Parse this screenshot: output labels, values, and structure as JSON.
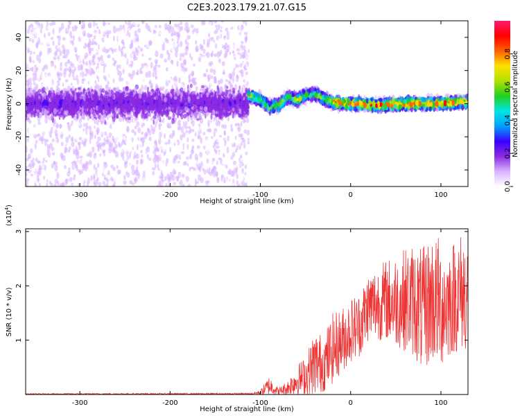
{
  "chart_data": [
    {
      "type": "heatmap",
      "title": "C2E3.2023.179.21.07.G15",
      "xlabel": "Height of straight line (km)",
      "ylabel": "Frequency (Hz)",
      "xlim": [
        -360,
        130
      ],
      "ylim": [
        -50,
        50
      ],
      "xticks": [
        -300,
        -200,
        -100,
        0,
        100
      ],
      "yticks": [
        -40,
        -20,
        0,
        20,
        40
      ],
      "colorbar": {
        "label": "Normalized spectral amplitude",
        "range": [
          0.0,
          1.0
        ],
        "ticks": [
          0.0,
          0.2,
          0.4,
          0.6,
          0.8
        ],
        "colors": [
          "#ffffff",
          "#d9b3ff",
          "#8a2be2",
          "#3a00ff",
          "#00a0ff",
          "#00e5e5",
          "#20d020",
          "#b0e000",
          "#ffe000",
          "#ff6000",
          "#ff0000",
          "#ff1a70"
        ]
      },
      "regions": [
        {
          "x_from": -360,
          "x_to": -113,
          "spread_hz": 50,
          "core_amplitude": 0.15,
          "pattern": "broadband noisy energy with a bright purple band near 0 Hz"
        },
        {
          "x_from": -113,
          "x_to": 130,
          "spread_hz": 8,
          "core_amplitude": 0.9,
          "pattern": "narrow signal track near 0 Hz"
        }
      ],
      "centerline": [
        {
          "x": -112,
          "y": 5
        },
        {
          "x": -100,
          "y": 2
        },
        {
          "x": -90,
          "y": -2
        },
        {
          "x": -80,
          "y": -1
        },
        {
          "x": -70,
          "y": 4
        },
        {
          "x": -60,
          "y": 2
        },
        {
          "x": -50,
          "y": 5
        },
        {
          "x": -40,
          "y": 6
        },
        {
          "x": -30,
          "y": 3
        },
        {
          "x": -20,
          "y": 1
        },
        {
          "x": 0,
          "y": 0
        },
        {
          "x": 30,
          "y": -1
        },
        {
          "x": 60,
          "y": 0
        },
        {
          "x": 90,
          "y": 0
        },
        {
          "x": 130,
          "y": 1
        }
      ]
    },
    {
      "type": "line",
      "xlabel": "Height of straight line (km)",
      "ylabel": "SNR (10 * v/v)",
      "yscale_label": "(x10",
      "yscale_exp": "4",
      "yscale_close": ")",
      "xlim": [
        -360,
        130
      ],
      "ylim": [
        0,
        3.05
      ],
      "xticks": [
        -300,
        -200,
        -100,
        0,
        100
      ],
      "yticks": [
        1,
        2,
        3
      ],
      "color": "#ee3333",
      "envelope": [
        {
          "x": -360,
          "low": 0.0,
          "high": 0.02
        },
        {
          "x": -110,
          "low": 0.0,
          "high": 0.03
        },
        {
          "x": -100,
          "low": 0.0,
          "high": 0.08
        },
        {
          "x": -90,
          "low": 0.0,
          "high": 0.35
        },
        {
          "x": -80,
          "low": 0.0,
          "high": 0.12
        },
        {
          "x": -70,
          "low": 0.0,
          "high": 0.25
        },
        {
          "x": -60,
          "low": 0.0,
          "high": 0.55
        },
        {
          "x": -50,
          "low": 0.0,
          "high": 0.7
        },
        {
          "x": -40,
          "low": 0.0,
          "high": 1.2
        },
        {
          "x": -30,
          "low": 0.05,
          "high": 1.1
        },
        {
          "x": -20,
          "low": 0.2,
          "high": 1.5
        },
        {
          "x": -10,
          "low": 0.4,
          "high": 1.6
        },
        {
          "x": 0,
          "low": 0.6,
          "high": 1.8
        },
        {
          "x": 10,
          "low": 0.7,
          "high": 1.9
        },
        {
          "x": 20,
          "low": 1.0,
          "high": 2.3
        },
        {
          "x": 30,
          "low": 1.0,
          "high": 2.4
        },
        {
          "x": 40,
          "low": 1.0,
          "high": 2.5
        },
        {
          "x": 50,
          "low": 0.9,
          "high": 2.6
        },
        {
          "x": 60,
          "low": 0.8,
          "high": 2.7
        },
        {
          "x": 70,
          "low": 0.7,
          "high": 2.8
        },
        {
          "x": 80,
          "low": 0.4,
          "high": 2.7
        },
        {
          "x": 90,
          "low": 0.6,
          "high": 3.0
        },
        {
          "x": 100,
          "low": 0.5,
          "high": 2.9
        },
        {
          "x": 110,
          "low": 0.7,
          "high": 2.8
        },
        {
          "x": 120,
          "low": 0.8,
          "high": 3.0
        },
        {
          "x": 130,
          "low": 0.8,
          "high": 3.0
        }
      ]
    }
  ]
}
